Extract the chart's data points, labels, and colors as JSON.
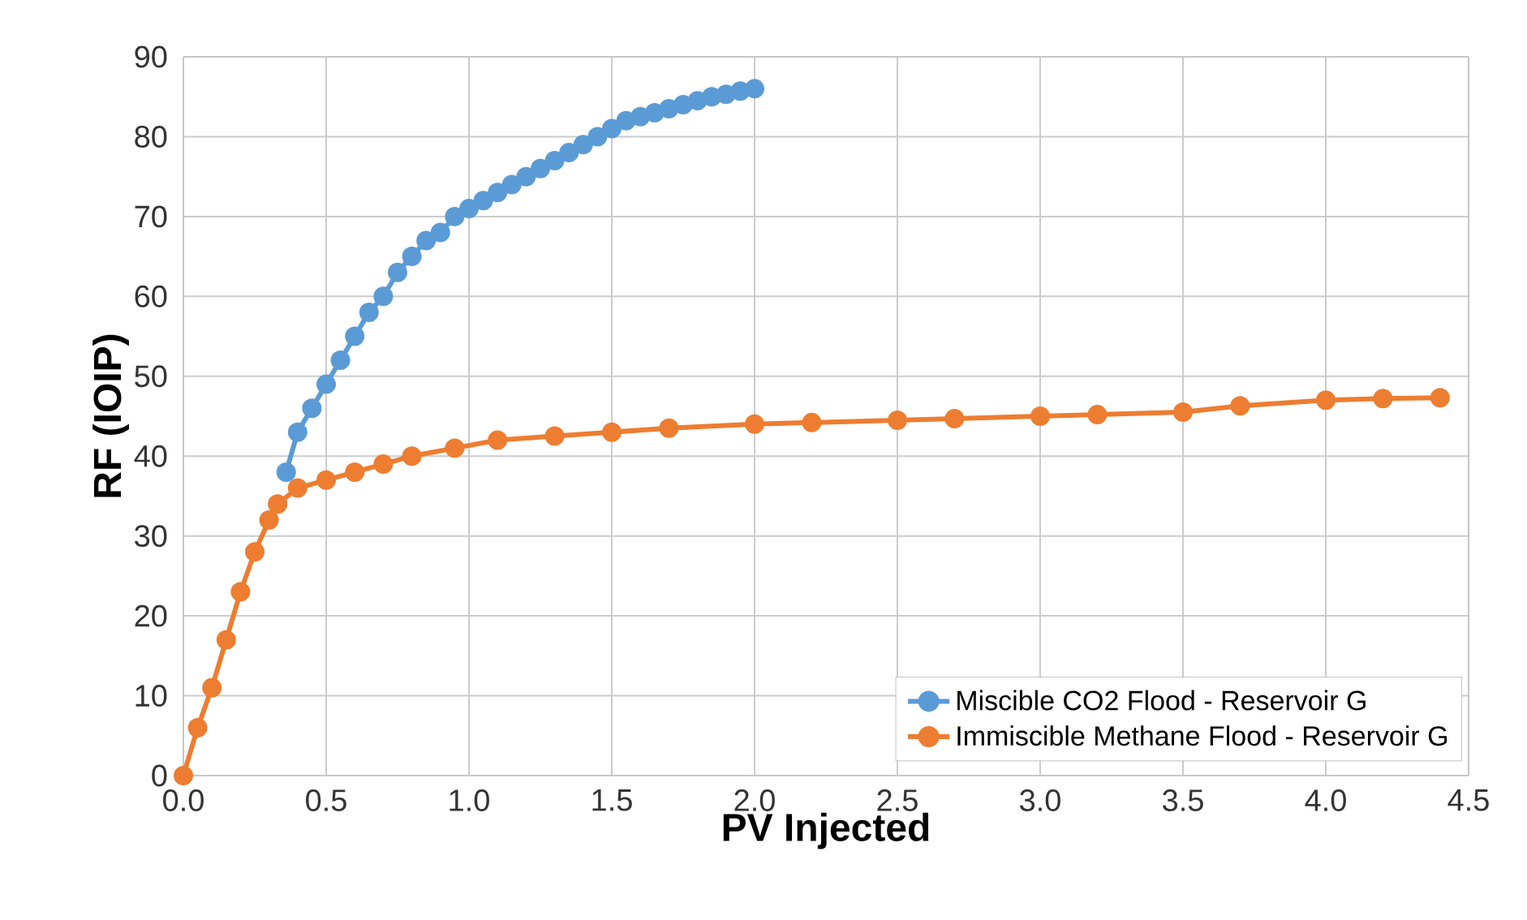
{
  "chart_data": {
    "type": "line",
    "xlabel": "PV Injected",
    "ylabel": "RF (IOIP)",
    "xlim": [
      0,
      4.5
    ],
    "xticks": [
      {
        "value": 0,
        "label": "0.0"
      },
      0.5,
      {
        "value": 1,
        "label": "1.0"
      },
      1.5,
      {
        "value": 2,
        "label": "2.0"
      },
      2.5,
      {
        "value": 3,
        "label": "3.0"
      },
      3.5,
      {
        "value": 4,
        "label": "4.0"
      },
      4.5
    ],
    "ylim": [
      0,
      90
    ],
    "yticks": [
      0,
      10,
      20,
      30,
      40,
      50,
      60,
      70,
      80,
      90
    ],
    "grid": true,
    "legend": "bottom right",
    "marker": "circle",
    "line_style": "solid",
    "series": [
      {
        "name": "Miscible CO2 Flood - Reservoir G",
        "color": "#5b9bd5",
        "x": [
          0.36,
          0.4,
          0.45,
          0.5,
          0.55,
          0.6,
          0.65,
          0.7,
          0.75,
          0.8,
          0.85,
          0.9,
          0.95,
          1.0,
          1.05,
          1.1,
          1.15,
          1.2,
          1.25,
          1.3,
          1.35,
          1.4,
          1.45,
          1.5,
          1.55,
          1.6,
          1.65,
          1.7,
          1.75,
          1.8,
          1.85,
          1.9,
          1.95,
          2.0
        ],
        "values": [
          38,
          43,
          46,
          49,
          52,
          55,
          58,
          60,
          63,
          65,
          67,
          68,
          70,
          71,
          72,
          73,
          74,
          75,
          76,
          77,
          78,
          79,
          80,
          81,
          82,
          82.5,
          83,
          83.5,
          84,
          84.5,
          85,
          85.3,
          85.7,
          86
        ]
      },
      {
        "name": "Immiscible Methane Flood - Reservoir G",
        "color": "#ed7d31",
        "x": [
          0,
          0.05,
          0.1,
          0.15,
          0.2,
          0.25,
          0.3,
          0.33,
          0.4,
          0.5,
          0.6,
          0.7,
          0.8,
          0.95,
          1.1,
          1.3,
          1.5,
          1.7,
          2.0,
          2.2,
          2.5,
          2.7,
          3.0,
          3.2,
          3.5,
          3.7,
          4.0,
          4.2,
          4.4
        ],
        "values": [
          0,
          6,
          11,
          17,
          23,
          28,
          32,
          34,
          36,
          37,
          38,
          39,
          40,
          41,
          42,
          42.5,
          43,
          43.5,
          44,
          44.2,
          44.5,
          44.7,
          45,
          45.2,
          45.5,
          46.3,
          47,
          47.2,
          47.3
        ]
      }
    ]
  }
}
